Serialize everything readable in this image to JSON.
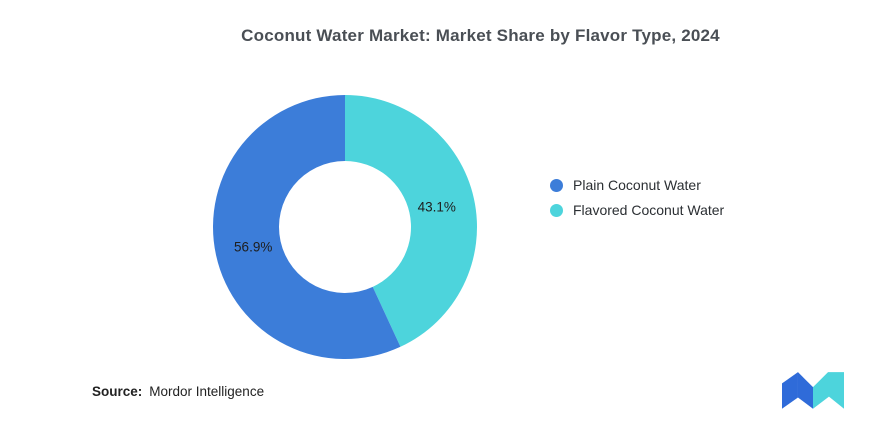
{
  "chart_data": {
    "type": "pie",
    "variant": "donut",
    "title": "Coconut Water Market: Market Share by Flavor Type, 2024",
    "series": [
      {
        "name": "Plain Coconut Water",
        "value": 56.9,
        "label": "56.9%",
        "color": "#3C7DD9"
      },
      {
        "name": "Flavored Coconut Water",
        "value": 43.1,
        "label": "43.1%",
        "color": "#4DD4DC"
      }
    ],
    "start_angle_deg": -90,
    "inner_radius_ratio": 0.5,
    "legend_position": "right",
    "label_position": "inside"
  },
  "source": {
    "prefix": "Source:",
    "name": "Mordor Intelligence"
  },
  "logo": {
    "icon": "mordor-intelligence-logo",
    "blue": "#2F6BD9",
    "teal": "#4DD4DC"
  }
}
